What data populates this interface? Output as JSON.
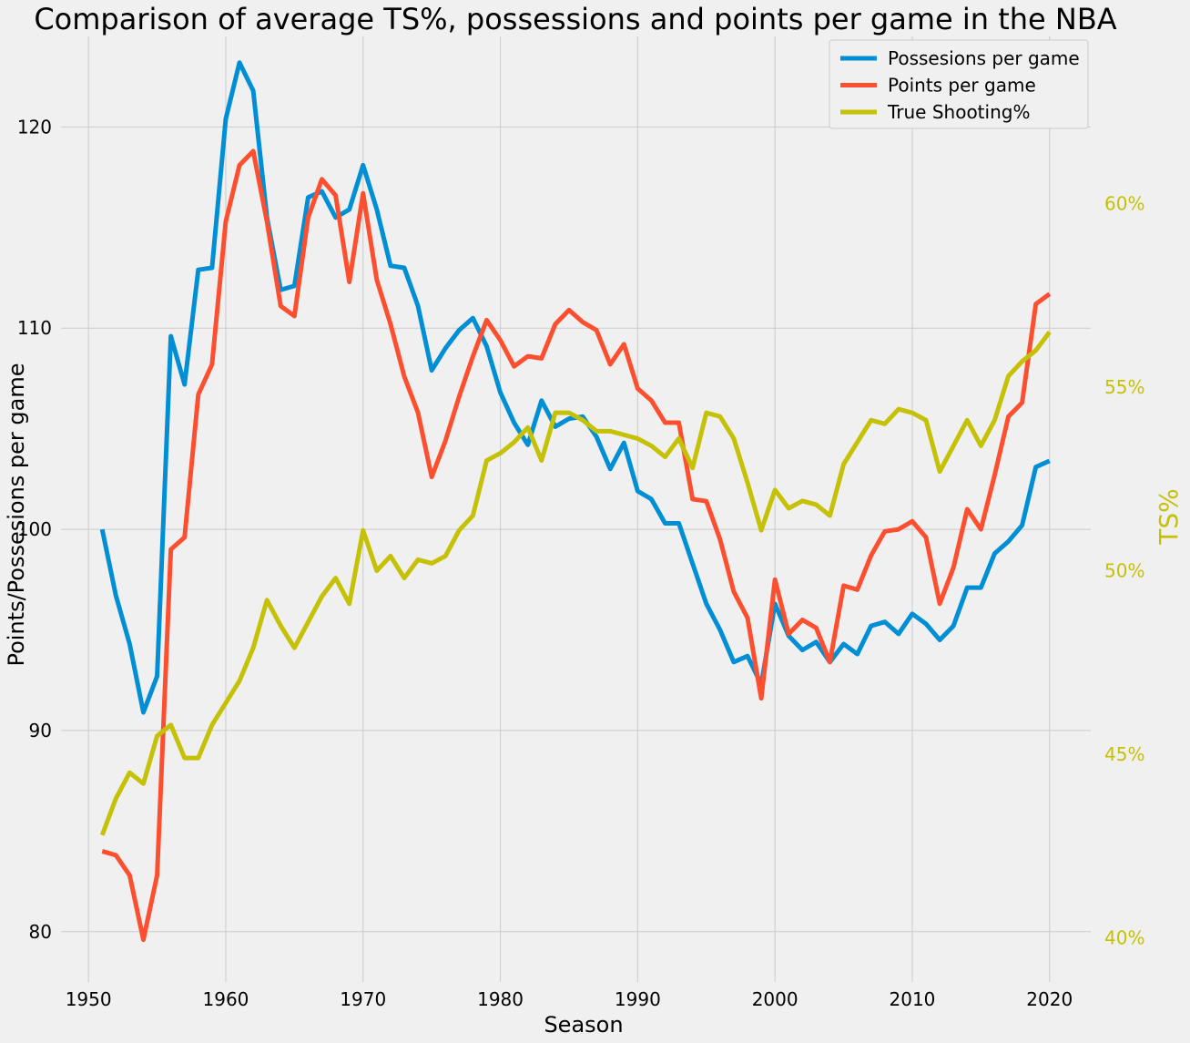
{
  "chart_data": {
    "type": "line",
    "title": "Comparison of average TS%, possessions and points per game in the NBA",
    "xlabel": "Season",
    "ylabel": "Points/Possesions per game",
    "y2label": "TS%",
    "xlim": [
      1948,
      2023
    ],
    "ylim": [
      77.5,
      124.5
    ],
    "y2lim": [
      0.388,
      0.6455
    ],
    "x_ticks": [
      1950,
      1960,
      1970,
      1980,
      1990,
      2000,
      2010,
      2020
    ],
    "y_ticks": [
      80,
      90,
      100,
      110,
      120
    ],
    "y2_ticks": [
      0.4,
      0.45,
      0.5,
      0.55,
      0.6
    ],
    "y2_tick_labels": [
      "40%",
      "45%",
      "50%",
      "55%",
      "60%"
    ],
    "grid": true,
    "legend_position": "top-right",
    "axis2_color": "#c5c106",
    "x": [
      1951,
      1952,
      1953,
      1954,
      1955,
      1956,
      1957,
      1958,
      1959,
      1960,
      1961,
      1962,
      1963,
      1964,
      1965,
      1966,
      1967,
      1968,
      1969,
      1970,
      1971,
      1972,
      1973,
      1974,
      1975,
      1976,
      1977,
      1978,
      1979,
      1980,
      1981,
      1982,
      1983,
      1984,
      1985,
      1986,
      1987,
      1988,
      1989,
      1990,
      1991,
      1992,
      1993,
      1994,
      1995,
      1996,
      1997,
      1998,
      1999,
      2000,
      2001,
      2002,
      2003,
      2004,
      2005,
      2006,
      2007,
      2008,
      2009,
      2010,
      2011,
      2012,
      2013,
      2014,
      2015,
      2016,
      2017,
      2018,
      2019,
      2020
    ],
    "series": [
      {
        "name": "Possesions per game",
        "color": "#008fd5",
        "axis": "left",
        "values": [
          100.0,
          96.7,
          94.3,
          90.9,
          92.7,
          109.6,
          107.2,
          112.9,
          113.0,
          120.4,
          123.2,
          121.8,
          115.5,
          111.9,
          112.1,
          116.5,
          116.8,
          115.5,
          115.9,
          118.1,
          115.9,
          113.1,
          113.0,
          111.1,
          107.9,
          109.0,
          109.9,
          110.5,
          109.1,
          106.8,
          105.3,
          104.2,
          106.4,
          105.1,
          105.5,
          105.6,
          104.6,
          103.0,
          104.3,
          101.9,
          101.5,
          100.3,
          100.3,
          98.3,
          96.3,
          95.0,
          93.4,
          93.7,
          92.3,
          96.3,
          94.7,
          94.0,
          94.4,
          93.4,
          94.3,
          93.8,
          95.2,
          95.4,
          94.8,
          95.8,
          95.3,
          94.5,
          95.2,
          97.1,
          97.1,
          98.8,
          99.4,
          100.2,
          103.1,
          103.4
        ]
      },
      {
        "name": "Points per game",
        "color": "#fc4f30",
        "axis": "left",
        "values": [
          84.0,
          83.8,
          82.8,
          79.6,
          82.8,
          99.0,
          99.6,
          106.7,
          108.2,
          115.3,
          118.1,
          118.8,
          115.3,
          111.1,
          110.6,
          115.5,
          117.4,
          116.6,
          112.3,
          116.7,
          112.4,
          110.2,
          107.6,
          105.8,
          102.6,
          104.4,
          106.6,
          108.6,
          110.4,
          109.4,
          108.1,
          108.6,
          108.5,
          110.2,
          110.9,
          110.3,
          109.9,
          108.2,
          109.2,
          107.0,
          106.4,
          105.3,
          105.3,
          101.5,
          101.4,
          99.5,
          96.9,
          95.6,
          91.6,
          97.5,
          94.8,
          95.5,
          95.1,
          93.4,
          97.2,
          97.0,
          98.7,
          99.9,
          100.0,
          100.4,
          99.6,
          96.3,
          98.1,
          101.0,
          100.0,
          102.7,
          105.6,
          106.3,
          111.2,
          111.7
        ]
      },
      {
        "name": "True Shooting%",
        "color": "#c5c106",
        "axis": "right",
        "values": [
          0.428,
          0.438,
          0.445,
          0.442,
          0.455,
          0.458,
          0.449,
          0.449,
          0.458,
          0.464,
          0.47,
          0.479,
          0.492,
          0.485,
          0.479,
          0.486,
          0.493,
          0.498,
          0.491,
          0.511,
          0.5,
          0.504,
          0.498,
          0.503,
          0.502,
          0.504,
          0.511,
          0.515,
          0.53,
          0.532,
          0.535,
          0.539,
          0.53,
          0.543,
          0.543,
          0.541,
          0.538,
          0.538,
          0.537,
          0.536,
          0.534,
          0.531,
          0.536,
          0.528,
          0.543,
          0.542,
          0.536,
          0.524,
          0.511,
          0.522,
          0.517,
          0.519,
          0.518,
          0.515,
          0.529,
          0.535,
          0.541,
          0.54,
          0.544,
          0.543,
          0.541,
          0.527,
          0.534,
          0.541,
          0.534,
          0.541,
          0.553,
          0.557,
          0.56,
          0.565
        ]
      }
    ]
  }
}
